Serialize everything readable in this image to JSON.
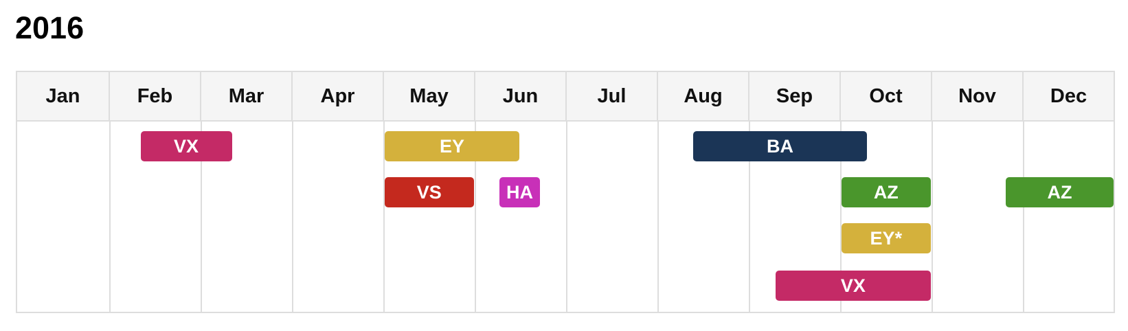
{
  "title": "2016",
  "chart_data": {
    "type": "gantt",
    "months": [
      "Jan",
      "Feb",
      "Mar",
      "Apr",
      "May",
      "Jun",
      "Jul",
      "Aug",
      "Sep",
      "Oct",
      "Nov",
      "Dec"
    ],
    "colors": {
      "VX": "#c42a66",
      "EY": "#d4b13c",
      "VS": "#c4291e",
      "HA": "#c830b8",
      "BA": "#1b3556",
      "AZ": "#4a962c"
    },
    "items": [
      {
        "label": "VX",
        "code": "VX",
        "row": 0,
        "start": 1.35,
        "end": 2.35
      },
      {
        "label": "EY",
        "code": "EY",
        "row": 0,
        "start": 4.02,
        "end": 5.5
      },
      {
        "label": "BA",
        "code": "BA",
        "row": 0,
        "start": 7.4,
        "end": 9.3
      },
      {
        "label": "VS",
        "code": "VS",
        "row": 1,
        "start": 4.02,
        "end": 5.0
      },
      {
        "label": "HA",
        "code": "HA",
        "row": 1,
        "start": 5.28,
        "end": 5.72
      },
      {
        "label": "AZ",
        "code": "AZ",
        "row": 1,
        "start": 9.02,
        "end": 10.0
      },
      {
        "label": "AZ",
        "code": "AZ",
        "row": 1,
        "start": 10.82,
        "end": 12.0
      },
      {
        "label": "EY*",
        "code": "EY",
        "row": 2,
        "start": 9.02,
        "end": 10.0
      },
      {
        "label": "VX",
        "code": "VX",
        "row": 3,
        "start": 8.3,
        "end": 10.0
      }
    ]
  }
}
